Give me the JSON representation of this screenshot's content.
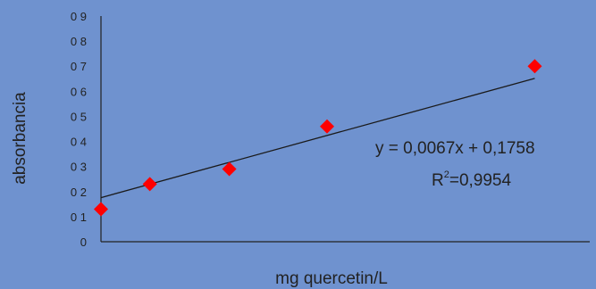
{
  "chart_data": {
    "type": "scatter",
    "xlabel": "mg quercetin/L",
    "ylabel": "absorbancia",
    "title": "",
    "x": [
      0,
      8,
      21,
      37,
      71
    ],
    "y": [
      0.13,
      0.23,
      0.29,
      0.46,
      0.7
    ],
    "xlim": [
      0,
      80
    ],
    "ylim": [
      0,
      0.9
    ],
    "y_tick_labels": [
      "0",
      "0 1",
      "0 2",
      "0 3",
      "0 4",
      "0 5",
      "0 6",
      "0 7",
      "0 8",
      "0 9"
    ],
    "trendline": {
      "slope": 0.0067,
      "intercept": 0.1758
    },
    "annotation": {
      "equation": "y = 0,0067x + 0,1758",
      "r2_prefix": "R",
      "r2_exp": "2",
      "r2_value": "=0,9954"
    },
    "colors": {
      "background": "#6f92cf",
      "marker": "#ff0000",
      "line": "#1a1a1a"
    },
    "marker_shape": "diamond",
    "grid": false
  }
}
